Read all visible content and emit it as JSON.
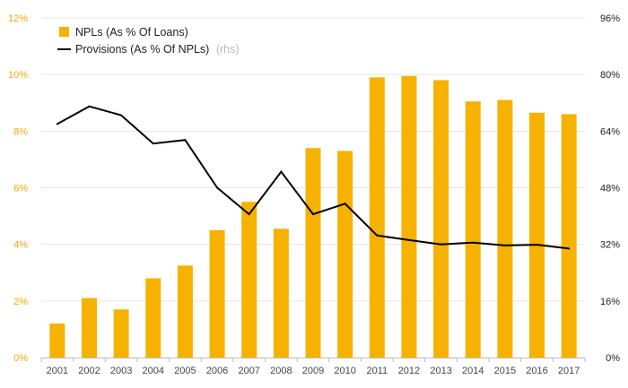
{
  "chart_data": {
    "type": "bar",
    "categories": [
      "2001",
      "2002",
      "2003",
      "2004",
      "2005",
      "2006",
      "2007",
      "2008",
      "2009",
      "2010",
      "2011",
      "2012",
      "2013",
      "2014",
      "2015",
      "2016",
      "2017"
    ],
    "series": [
      {
        "name": "NPLs (As % Of Loans)",
        "type": "bar",
        "axis": "left",
        "color": "#f7b200",
        "values": [
          1.2,
          2.1,
          1.7,
          2.8,
          3.25,
          4.5,
          5.5,
          4.55,
          7.4,
          7.3,
          9.9,
          9.95,
          9.8,
          9.05,
          9.1,
          8.65,
          8.6
        ]
      },
      {
        "name": "Provisions (As % Of NPLs)",
        "legend_suffix": "(rhs)",
        "type": "line",
        "axis": "right",
        "color": "#000000",
        "values": [
          66,
          71,
          68.5,
          60.5,
          61.5,
          48,
          40.5,
          52.5,
          40.5,
          43.5,
          34.5,
          33.2,
          32,
          32.5,
          31.7,
          31.9,
          30.8
        ]
      }
    ],
    "yleft": {
      "ylim": [
        0,
        12
      ],
      "ticks": [
        "0%",
        "2%",
        "4%",
        "6%",
        "8%",
        "10%",
        "12%"
      ]
    },
    "yright": {
      "ylim": [
        0,
        96
      ],
      "ticks": [
        "0%",
        "16%",
        "32%",
        "48%",
        "64%",
        "80%",
        "96%"
      ]
    },
    "grid": true,
    "legend_position": "top-left"
  }
}
